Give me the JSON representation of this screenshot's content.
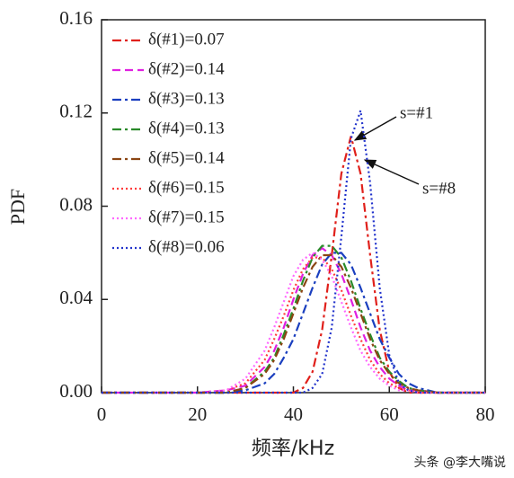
{
  "chart_data": {
    "type": "line",
    "xlabel": "频率/kHz",
    "ylabel": "PDF",
    "x": [
      0,
      20,
      26,
      30,
      34,
      36,
      38,
      40,
      42,
      44,
      46,
      48,
      50,
      52,
      54,
      56,
      58,
      60,
      62,
      64,
      66,
      70,
      80
    ],
    "series": [
      {
        "name": "δ(#1)=0.07",
        "color": "#e0201b",
        "linestyle": "dashdot",
        "values": [
          0,
          0,
          0,
          0,
          0,
          0,
          0,
          0,
          0.002,
          0.009,
          0.027,
          0.059,
          0.094,
          0.11,
          0.094,
          0.059,
          0.027,
          0.009,
          0.002,
          0,
          0,
          0,
          0
        ]
      },
      {
        "name": "δ(#2)=0.14",
        "color": "#e020e0",
        "linestyle": "dashed",
        "values": [
          0,
          0,
          0.001,
          0.003,
          0.011,
          0.018,
          0.028,
          0.04,
          0.051,
          0.059,
          0.062,
          0.059,
          0.051,
          0.04,
          0.028,
          0.018,
          0.011,
          0.006,
          0.003,
          0.001,
          0.001,
          0,
          0
        ]
      },
      {
        "name": "δ(#3)=0.13",
        "color": "#1a3fbf",
        "linestyle": "dashdot",
        "values": [
          0,
          0,
          0,
          0.001,
          0.004,
          0.008,
          0.015,
          0.023,
          0.034,
          0.045,
          0.055,
          0.06,
          0.06,
          0.055,
          0.045,
          0.034,
          0.023,
          0.015,
          0.008,
          0.004,
          0.002,
          0,
          0
        ]
      },
      {
        "name": "δ(#4)=0.13",
        "color": "#2a8a2a",
        "linestyle": "dashdot",
        "values": [
          0,
          0,
          0,
          0.002,
          0.009,
          0.015,
          0.025,
          0.036,
          0.048,
          0.058,
          0.063,
          0.063,
          0.058,
          0.048,
          0.036,
          0.025,
          0.015,
          0.009,
          0.005,
          0.002,
          0.001,
          0,
          0
        ]
      },
      {
        "name": "δ(#5)=0.14",
        "color": "#8b4513",
        "linestyle": "dashdot",
        "values": [
          0,
          0,
          0,
          0.002,
          0.008,
          0.014,
          0.023,
          0.034,
          0.045,
          0.054,
          0.059,
          0.059,
          0.054,
          0.045,
          0.034,
          0.023,
          0.014,
          0.008,
          0.004,
          0.002,
          0.001,
          0,
          0
        ]
      },
      {
        "name": "δ(#6)=0.15",
        "color": "#ff3b3b",
        "linestyle": "dotted",
        "values": [
          0,
          0,
          0.001,
          0.004,
          0.014,
          0.023,
          0.033,
          0.044,
          0.053,
          0.058,
          0.058,
          0.053,
          0.044,
          0.033,
          0.023,
          0.014,
          0.008,
          0.004,
          0.002,
          0.001,
          0,
          0,
          0
        ]
      },
      {
        "name": "δ(#7)=0.15",
        "color": "#ff66ff",
        "linestyle": "dotted",
        "values": [
          0,
          0,
          0.001,
          0.006,
          0.018,
          0.028,
          0.039,
          0.05,
          0.057,
          0.06,
          0.057,
          0.05,
          0.039,
          0.028,
          0.018,
          0.011,
          0.006,
          0.003,
          0.001,
          0.001,
          0,
          0,
          0
        ]
      },
      {
        "name": "δ(#8)=0.06",
        "color": "#2233cc",
        "linestyle": "dotted",
        "values": [
          0,
          0,
          0,
          0,
          0,
          0,
          0,
          0,
          0,
          0.002,
          0.008,
          0.028,
          0.067,
          0.109,
          0.121,
          0.09,
          0.045,
          0.016,
          0.004,
          0.001,
          0,
          0,
          0
        ]
      }
    ],
    "xlim": [
      0,
      80
    ],
    "xticks": [
      0,
      20,
      40,
      60,
      80
    ],
    "ylim": [
      0,
      0.16
    ],
    "yticks": [
      {
        "value": 0,
        "label": "0.00"
      },
      {
        "value": 0.04,
        "label": "0.04"
      },
      {
        "value": 0.08,
        "label": "0.08"
      },
      {
        "value": 0.12,
        "label": "0.12"
      },
      {
        "value": 0.16,
        "label": "0.16"
      }
    ],
    "annotations": [
      "s=#1",
      "s=#8"
    ],
    "legend": "upper-left",
    "watermark": "头条 @李大嘴说"
  }
}
